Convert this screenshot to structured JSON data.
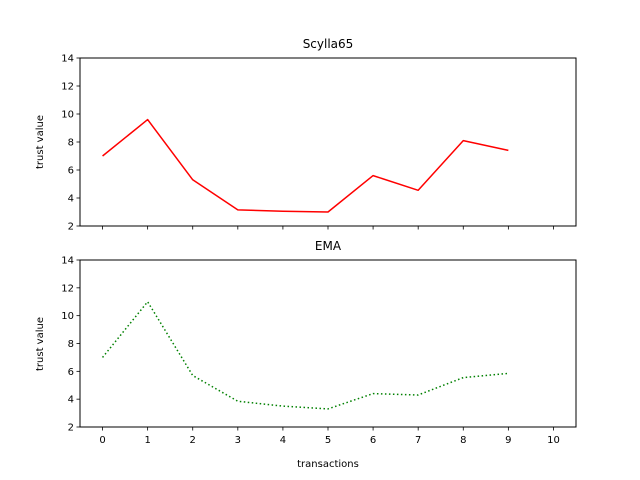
{
  "chart_data": [
    {
      "type": "line",
      "title": "Scylla65",
      "xlabel": "",
      "ylabel": "trust value",
      "xlim": [
        -0.5,
        10.5
      ],
      "ylim": [
        2,
        14
      ],
      "xticks": [
        0,
        1,
        2,
        3,
        4,
        5,
        6,
        7,
        8,
        9,
        10
      ],
      "xtick_labels_visible": false,
      "yticks": [
        2,
        4,
        6,
        8,
        10,
        12,
        14
      ],
      "ytick_labels": [
        "2",
        "4",
        "6",
        "8",
        "10",
        "12",
        "14"
      ],
      "grid": false,
      "series": [
        {
          "color": "#ff0000",
          "line_style": "solid",
          "x": [
            0,
            1,
            2,
            3,
            4,
            5,
            6,
            7,
            8,
            9
          ],
          "values": [
            7.0,
            9.6,
            5.3,
            3.15,
            3.05,
            3.0,
            5.6,
            4.55,
            8.1,
            7.4
          ]
        }
      ]
    },
    {
      "type": "line",
      "title": "EMA",
      "xlabel": "transactions",
      "ylabel": "trust value",
      "xlim": [
        -0.5,
        10.5
      ],
      "ylim": [
        2,
        14
      ],
      "xticks": [
        0,
        1,
        2,
        3,
        4,
        5,
        6,
        7,
        8,
        9,
        10
      ],
      "xtick_labels": [
        "0",
        "1",
        "2",
        "3",
        "4",
        "5",
        "6",
        "7",
        "8",
        "9",
        "10"
      ],
      "xtick_labels_visible": true,
      "yticks": [
        2,
        4,
        6,
        8,
        10,
        12,
        14
      ],
      "ytick_labels": [
        "2",
        "4",
        "6",
        "8",
        "10",
        "12",
        "14"
      ],
      "grid": false,
      "series": [
        {
          "color": "#008000",
          "line_style": "dotted",
          "x": [
            0,
            1,
            2,
            3,
            4,
            5,
            6,
            7,
            8,
            9
          ],
          "values": [
            7.0,
            11.0,
            5.7,
            3.85,
            3.5,
            3.3,
            4.4,
            4.3,
            5.55,
            5.85
          ]
        }
      ]
    }
  ]
}
